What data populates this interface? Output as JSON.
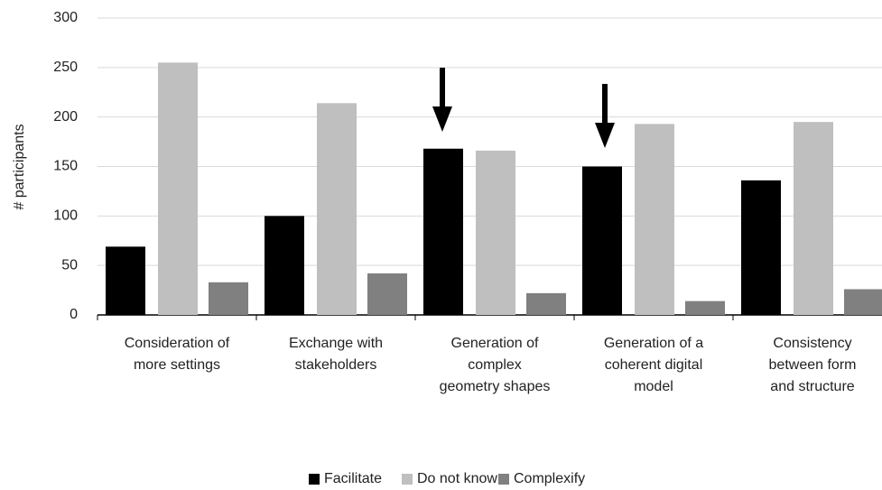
{
  "chart_data": {
    "type": "bar",
    "y_label": "# participants",
    "categories": [
      "Consideration of\nmore settings",
      "Exchange with\nstakeholders",
      "Generation of\ncomplex\ngeometry shapes",
      "Generation of a\ncoherent digital\nmodel",
      "Consistency\nbetween form\nand structure"
    ],
    "series": [
      {
        "name": "Facilitate",
        "color": "#000000",
        "values": [
          69,
          100,
          168,
          150,
          136
        ]
      },
      {
        "name": "Do not know",
        "color": "#bfbfbf",
        "values": [
          255,
          214,
          166,
          193,
          195
        ]
      },
      {
        "name": "Complexify",
        "color": "#808080",
        "values": [
          33,
          42,
          22,
          14,
          26
        ]
      }
    ],
    "ylim": [
      0,
      300
    ],
    "yticks": [
      0,
      50,
      100,
      150,
      200,
      250,
      300
    ],
    "grid": true,
    "legend": "bottom"
  }
}
